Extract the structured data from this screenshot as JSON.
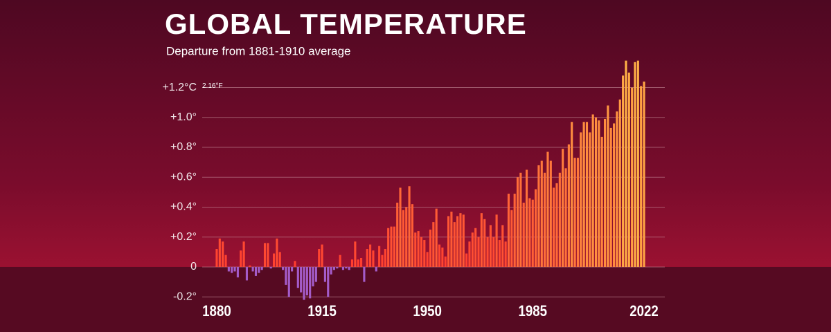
{
  "chart_data": {
    "type": "bar",
    "title": "GLOBAL TEMPERATURE",
    "subtitle": "Departure from 1881-1910 average",
    "annotation": "2.16°F",
    "x": [
      1880,
      1881,
      1882,
      1883,
      1884,
      1885,
      1886,
      1887,
      1888,
      1889,
      1890,
      1891,
      1892,
      1893,
      1894,
      1895,
      1896,
      1897,
      1898,
      1899,
      1900,
      1901,
      1902,
      1903,
      1904,
      1905,
      1906,
      1907,
      1908,
      1909,
      1910,
      1911,
      1912,
      1913,
      1914,
      1915,
      1916,
      1917,
      1918,
      1919,
      1920,
      1921,
      1922,
      1923,
      1924,
      1925,
      1926,
      1927,
      1928,
      1929,
      1930,
      1931,
      1932,
      1933,
      1934,
      1935,
      1936,
      1937,
      1938,
      1939,
      1940,
      1941,
      1942,
      1943,
      1944,
      1945,
      1946,
      1947,
      1948,
      1949,
      1950,
      1951,
      1952,
      1953,
      1954,
      1955,
      1956,
      1957,
      1958,
      1959,
      1960,
      1961,
      1962,
      1963,
      1964,
      1965,
      1966,
      1967,
      1968,
      1969,
      1970,
      1971,
      1972,
      1973,
      1974,
      1975,
      1976,
      1977,
      1978,
      1979,
      1980,
      1981,
      1982,
      1983,
      1984,
      1985,
      1986,
      1987,
      1988,
      1989,
      1990,
      1991,
      1992,
      1993,
      1994,
      1995,
      1996,
      1997,
      1998,
      1999,
      2000,
      2001,
      2002,
      2003,
      2004,
      2005,
      2006,
      2007,
      2008,
      2009,
      2010,
      2011,
      2012,
      2013,
      2014,
      2015,
      2016,
      2017,
      2018,
      2019,
      2020,
      2021,
      2022
    ],
    "values": [
      0.12,
      0.19,
      0.17,
      0.08,
      -0.03,
      -0.04,
      -0.03,
      -0.07,
      0.11,
      0.17,
      -0.09,
      0.01,
      -0.03,
      -0.06,
      -0.04,
      -0.02,
      0.16,
      0.16,
      -0.01,
      0.09,
      0.19,
      0.1,
      -0.02,
      -0.12,
      -0.2,
      -0.03,
      0.04,
      -0.14,
      -0.17,
      -0.22,
      -0.19,
      -0.21,
      -0.13,
      -0.1,
      0.12,
      0.15,
      -0.1,
      -0.2,
      -0.05,
      -0.02,
      -0.01,
      0.08,
      -0.02,
      -0.01,
      -0.02,
      0.05,
      0.17,
      0.05,
      0.06,
      -0.1,
      0.12,
      0.15,
      0.11,
      -0.03,
      0.14,
      0.08,
      0.12,
      0.26,
      0.27,
      0.27,
      0.43,
      0.53,
      0.38,
      0.4,
      0.54,
      0.42,
      0.23,
      0.24,
      0.2,
      0.18,
      0.1,
      0.25,
      0.3,
      0.39,
      0.15,
      0.13,
      0.07,
      0.34,
      0.37,
      0.3,
      0.34,
      0.36,
      0.35,
      0.09,
      0.17,
      0.23,
      0.26,
      0.2,
      0.36,
      0.32,
      0.2,
      0.28,
      0.2,
      0.35,
      0.18,
      0.28,
      0.17,
      0.49,
      0.38,
      0.49,
      0.6,
      0.63,
      0.43,
      0.65,
      0.46,
      0.45,
      0.52,
      0.68,
      0.71,
      0.63,
      0.77,
      0.71,
      0.53,
      0.56,
      0.63,
      0.79,
      0.66,
      0.82,
      0.97,
      0.73,
      0.73,
      0.9,
      0.97,
      0.97,
      0.9,
      1.02,
      1.0,
      0.98,
      0.87,
      0.99,
      1.08,
      0.93,
      0.96,
      1.04,
      1.12,
      1.28,
      1.38,
      1.3,
      1.2,
      1.37,
      1.38,
      1.21,
      1.24
    ],
    "xlim": [
      1879.5,
      2022.5
    ],
    "xticks": [
      1880,
      1915,
      1950,
      1985,
      2022
    ],
    "ylim": [
      -0.25,
      1.42
    ],
    "yticks": [
      {
        "value": -0.2,
        "label": "-0.2°"
      },
      0,
      {
        "value": 0.2,
        "label": "+0.2°"
      },
      {
        "value": 0.4,
        "label": "+0.4°"
      },
      {
        "value": 0.6,
        "label": "+0.6°"
      },
      {
        "value": 0.8,
        "label": "+0.8°"
      },
      {
        "value": 1.0,
        "label": "+1.0°"
      },
      {
        "value": 1.2,
        "label": "+1.2°C"
      }
    ],
    "grid": true,
    "colors": {
      "negative": "#a45cc9",
      "low": "#ff3a2e",
      "high": "#ffb347"
    }
  }
}
